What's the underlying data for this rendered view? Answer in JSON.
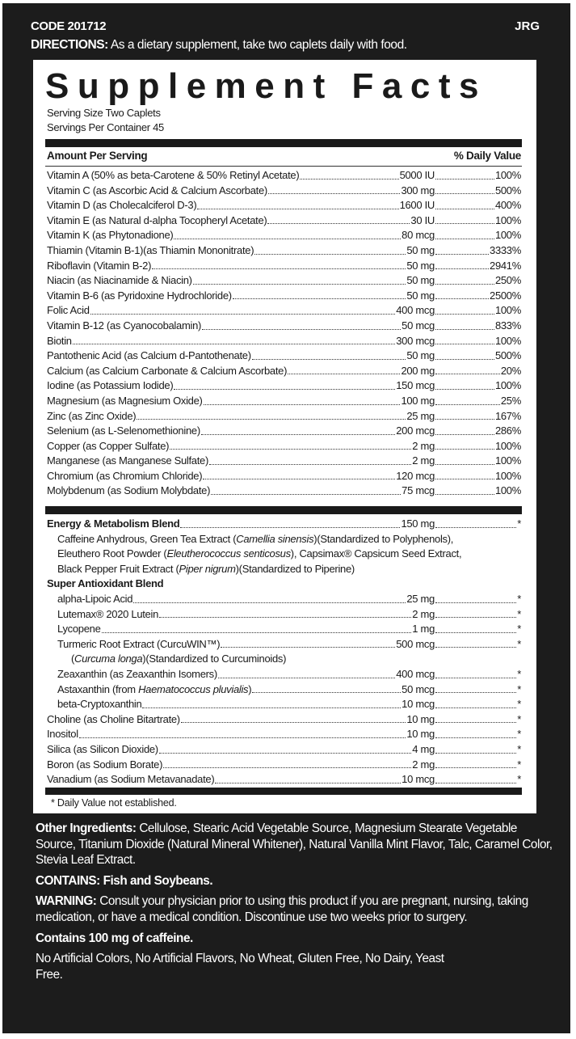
{
  "header": {
    "code": "CODE 201712",
    "mark": "JRG",
    "directions_label": "DIRECTIONS:",
    "directions_text": "As a dietary supplement, take two caplets daily with food."
  },
  "facts": {
    "title": "Supplement Facts",
    "serving_size": "Serving Size Two Caplets",
    "servings_per_container": "Servings Per Container 45",
    "amount_header": "Amount Per Serving",
    "dv_header": "% Daily Value",
    "nutrients": [
      {
        "name": "Vitamin A (50% as beta-Carotene & 50% Retinyl Acetate)",
        "amount": "5000 IU",
        "dv": "100%"
      },
      {
        "name": "Vitamin C (as Ascorbic Acid & Calcium Ascorbate)",
        "amount": "300 mg",
        "dv": "500%"
      },
      {
        "name": "Vitamin D (as Cholecalciferol D-3)",
        "amount": "1600 IU",
        "dv": "400%"
      },
      {
        "name": "Vitamin E (as Natural d-alpha Tocopheryl Acetate)",
        "amount": "30 IU",
        "dv": "100%"
      },
      {
        "name": "Vitamin K (as Phytonadione)",
        "amount": "80 mcg",
        "dv": "100%"
      },
      {
        "name": "Thiamin (Vitamin B-1)(as Thiamin Mononitrate)",
        "amount": "50 mg",
        "dv": "3333%"
      },
      {
        "name": "Riboflavin (Vitamin B-2)",
        "amount": "50 mg",
        "dv": "2941%"
      },
      {
        "name": "Niacin (as Niacinamide & Niacin)",
        "amount": "50 mg",
        "dv": "250%"
      },
      {
        "name": "Vitamin B-6 (as Pyridoxine Hydrochloride)",
        "amount": "50 mg",
        "dv": "2500%"
      },
      {
        "name": "Folic Acid",
        "amount": "400 mcg",
        "dv": "100%"
      },
      {
        "name": "Vitamin B-12 (as Cyanocobalamin)",
        "amount": "50 mcg",
        "dv": "833%"
      },
      {
        "name": "Biotin",
        "amount": "300 mcg",
        "dv": "100%"
      },
      {
        "name": "Pantothenic Acid (as Calcium d-Pantothenate)",
        "amount": "50 mg",
        "dv": "500%"
      },
      {
        "name": "Calcium (as Calcium Carbonate & Calcium Ascorbate)",
        "amount": "200 mg",
        "dv": "20%"
      },
      {
        "name": "Iodine (as Potassium Iodide)",
        "amount": "150 mcg",
        "dv": "100%"
      },
      {
        "name": "Magnesium (as Magnesium Oxide)",
        "amount": "100 mg",
        "dv": "25%"
      },
      {
        "name": "Zinc (as Zinc Oxide)",
        "amount": "25 mg",
        "dv": "167%"
      },
      {
        "name": "Selenium (as L-Selenomethionine)",
        "amount": "200 mcg",
        "dv": "286%"
      },
      {
        "name": "Copper (as Copper Sulfate)",
        "amount": "2 mg",
        "dv": "100%"
      },
      {
        "name": "Manganese (as Manganese Sulfate)",
        "amount": "2 mg",
        "dv": "100%"
      },
      {
        "name": "Chromium (as Chromium Chloride)",
        "amount": "120 mcg",
        "dv": "100%"
      },
      {
        "name": "Molybdenum (as Sodium Molybdate)",
        "amount": "75 mcg",
        "dv": "100%"
      }
    ],
    "energy_blend": {
      "name": "Energy & Metabolism Blend",
      "amount": "150 mg",
      "dv": "*",
      "lines": [
        [
          {
            "t": "Caffeine Anhydrous, Green Tea Extract ("
          },
          {
            "t": "Camellia sinensis",
            "i": true
          },
          {
            "t": ")(Standardized to Polyphenols),"
          }
        ],
        [
          {
            "t": "Eleuthero Root Powder ("
          },
          {
            "t": "Eleutherococcus senticosus",
            "i": true
          },
          {
            "t": "), Capsimax® Capsicum Seed Extract,"
          }
        ],
        [
          {
            "t": "Black Pepper Fruit Extract ("
          },
          {
            "t": "Piper nigrum",
            "i": true
          },
          {
            "t": ")(Standardized to Piperine)"
          }
        ]
      ]
    },
    "antioxidant_blend": {
      "name": "Super Antioxidant Blend",
      "items": [
        {
          "name": "alpha-Lipoic Acid",
          "amount": "25 mg",
          "dv": "*"
        },
        {
          "name": "Lutemax® 2020 Lutein",
          "amount": "2 mg",
          "dv": "*"
        },
        {
          "name": "Lycopene",
          "amount": "1 mg",
          "dv": "*"
        },
        {
          "name": "Turmeric Root Extract (CurcuWIN™)",
          "amount": "500 mcg",
          "dv": "*",
          "note": [
            {
              "t": "("
            },
            {
              "t": "Curcuma longa",
              "i": true
            },
            {
              "t": ")(Standardized to Curcuminoids)"
            }
          ]
        },
        {
          "name": "Zeaxanthin (as Zeaxanthin Isomers)",
          "amount": "400 mcg",
          "dv": "*"
        },
        {
          "name_parts": [
            {
              "t": "Astaxanthin (from "
            },
            {
              "t": "Haematococcus pluvialis",
              "i": true
            },
            {
              "t": ")"
            }
          ],
          "amount": "50 mcg",
          "dv": "*"
        },
        {
          "name": "beta-Cryptoxanthin",
          "amount": "10 mcg",
          "dv": "*"
        }
      ]
    },
    "others": [
      {
        "name": "Choline (as Choline Bitartrate)",
        "amount": "10 mg",
        "dv": "*"
      },
      {
        "name": "Inositol",
        "amount": "10 mg",
        "dv": "*"
      },
      {
        "name": "Silica (as Silicon Dioxide)",
        "amount": "4 mg",
        "dv": "*"
      },
      {
        "name": "Boron (as Sodium Borate)",
        "amount": "2 mg",
        "dv": "*"
      },
      {
        "name": "Vanadium (as Sodium Metavanadate)",
        "amount": "10 mcg",
        "dv": "*"
      }
    ],
    "footnote": "* Daily Value not established."
  },
  "bottom": {
    "other_ingredients_label": "Other Ingredients:",
    "other_ingredients": "Cellulose, Stearic Acid Vegetable Source, Magnesium Stearate Vegetable Source, Titanium Dioxide (Natural Mineral Whitener), Natural Vanilla Mint Flavor, Talc, Caramel Color, Stevia Leaf Extract.",
    "contains": "CONTAINS: Fish and Soybeans.",
    "warning_label": "WARNING:",
    "warning": "Consult your physician prior to using this product if you are pregnant, nursing, taking medication, or have a medical condition. Discontinue use two weeks prior to surgery.",
    "caffeine": "Contains 100 mg of caffeine.",
    "free_from": "No Artificial Colors, No Artificial Flavors, No Wheat, Gluten Free, No Dairy, Yeast Free."
  }
}
